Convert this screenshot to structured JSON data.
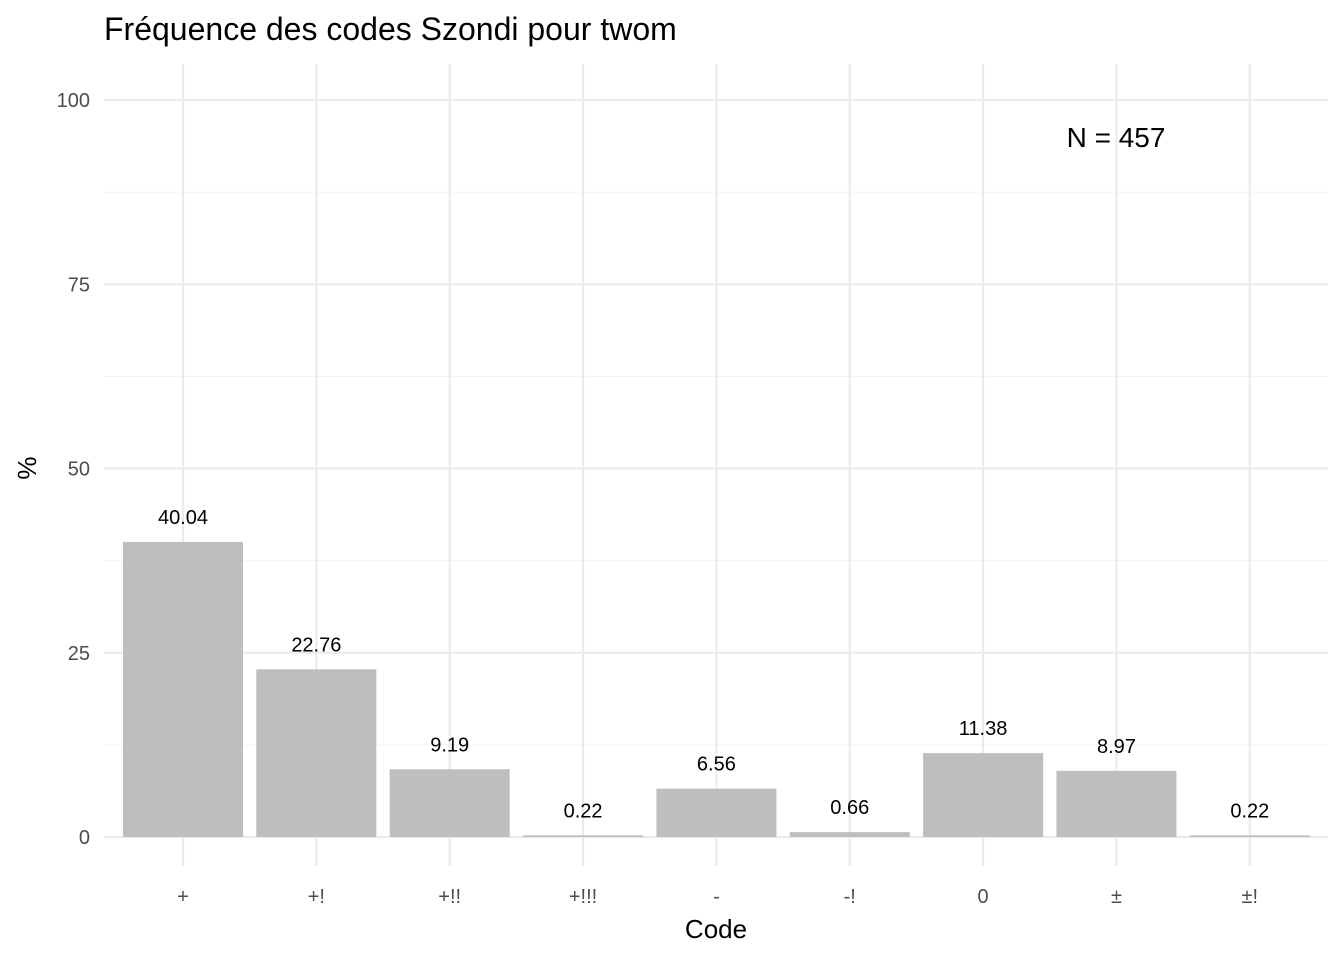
{
  "chart_data": {
    "type": "bar",
    "title": "Fréquence des codes Szondi pour twom",
    "xlabel": "Code",
    "ylabel": "%",
    "categories": [
      "+",
      "+!",
      "+!!",
      "+!!!",
      "-",
      "-!",
      "0",
      "±",
      "±!"
    ],
    "values": [
      40.04,
      22.76,
      9.19,
      0.22,
      6.56,
      0.66,
      11.38,
      8.97,
      0.22
    ],
    "value_labels": [
      "40.04",
      "22.76",
      "9.19",
      "0.22",
      "6.56",
      "0.66",
      "11.38",
      "8.97",
      "0.22"
    ],
    "ylim": [
      0,
      100
    ],
    "y_ticks": [
      0,
      25,
      50,
      75,
      100
    ],
    "y_tick_labels": [
      "0",
      "25",
      "50",
      "75",
      "100"
    ],
    "annotation": "N = 457",
    "annotation_position": "top-right",
    "grid": true,
    "bar_color": "#bebebe"
  }
}
